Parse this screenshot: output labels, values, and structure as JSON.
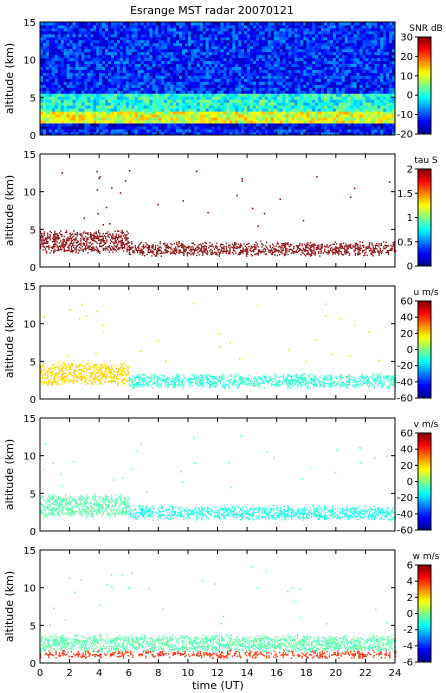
{
  "title": "Esrange MST radar 20070121",
  "xlabel": "time (UT)",
  "ylabel": "altitude (km)",
  "x_ticks": [
    "0",
    "2",
    "4",
    "6",
    "8",
    "10",
    "12",
    "14",
    "16",
    "18",
    "20",
    "22",
    "24"
  ],
  "y_ticks": [
    "0",
    "5",
    "10",
    "15"
  ],
  "colormap": [
    "#00008f",
    "#0000ff",
    "#0080ff",
    "#00ffff",
    "#80ff80",
    "#ffff00",
    "#ff8000",
    "#ff0000",
    "#800000"
  ],
  "chart_data": [
    {
      "type": "heatmap",
      "quantity": "SNR",
      "colorbar_label": "SNR dB",
      "colorbar_ticks": [
        "30",
        "20",
        "10",
        "0",
        "-10",
        "-20"
      ],
      "clim": [
        -20,
        30
      ],
      "xlim": [
        0,
        24
      ],
      "ylim": [
        0,
        15
      ],
      "layers": [
        {
          "alt_range": [
            0.6,
            1.6
          ],
          "value": -15
        },
        {
          "alt_range": [
            1.6,
            3.2
          ],
          "value": 10
        },
        {
          "alt_range": [
            3.2,
            5.5
          ],
          "value": 0
        },
        {
          "alt_range": [
            5.5,
            15
          ],
          "value": -12
        }
      ]
    },
    {
      "type": "heatmap",
      "quantity": "tau",
      "colorbar_label": "tau S",
      "colorbar_ticks": [
        "2",
        "1.5",
        "1",
        "0.5",
        "0"
      ],
      "clim": [
        0,
        2
      ],
      "xlim": [
        0,
        24
      ],
      "ylim": [
        0,
        15
      ],
      "typical_value": 2.0,
      "bands": [
        {
          "t": [
            0,
            6
          ],
          "alt": [
            2.0,
            4.5
          ],
          "value": 2.0
        },
        {
          "t": [
            6,
            24
          ],
          "alt": [
            1.6,
            3.0
          ],
          "value": 2.0
        }
      ]
    },
    {
      "type": "heatmap",
      "quantity": "u",
      "colorbar_label": "u m/s",
      "colorbar_ticks": [
        "60",
        "40",
        "20",
        "0",
        "-20",
        "-40",
        "-60"
      ],
      "clim": [
        -60,
        60
      ],
      "xlim": [
        0,
        24
      ],
      "ylim": [
        0,
        15
      ],
      "bands": [
        {
          "t": [
            0,
            6
          ],
          "alt": [
            2.0,
            4.5
          ],
          "value": 20
        },
        {
          "t": [
            6,
            24
          ],
          "alt": [
            1.6,
            3.0
          ],
          "value": -10
        }
      ]
    },
    {
      "type": "heatmap",
      "quantity": "v",
      "colorbar_label": "v m/s",
      "colorbar_ticks": [
        "60",
        "40",
        "20",
        "0",
        "-20",
        "-40",
        "-60"
      ],
      "clim": [
        -60,
        60
      ],
      "xlim": [
        0,
        24
      ],
      "ylim": [
        0,
        15
      ],
      "bands": [
        {
          "t": [
            0,
            6
          ],
          "alt": [
            2.0,
            4.5
          ],
          "value": -5
        },
        {
          "t": [
            6,
            24
          ],
          "alt": [
            1.6,
            3.0
          ],
          "value": -12
        }
      ]
    },
    {
      "type": "heatmap",
      "quantity": "w",
      "colorbar_label": "w m/s",
      "colorbar_ticks": [
        "6",
        "4",
        "2",
        "0",
        "-2",
        "-4",
        "-6"
      ],
      "clim": [
        -6,
        6
      ],
      "xlim": [
        0,
        24
      ],
      "ylim": [
        0,
        15
      ],
      "bands": [
        {
          "t": [
            0,
            24
          ],
          "alt": [
            1.6,
            3.4
          ],
          "value": -0.5
        },
        {
          "t": [
            0,
            24
          ],
          "alt": [
            0.8,
            1.3
          ],
          "value": 4
        }
      ]
    }
  ]
}
